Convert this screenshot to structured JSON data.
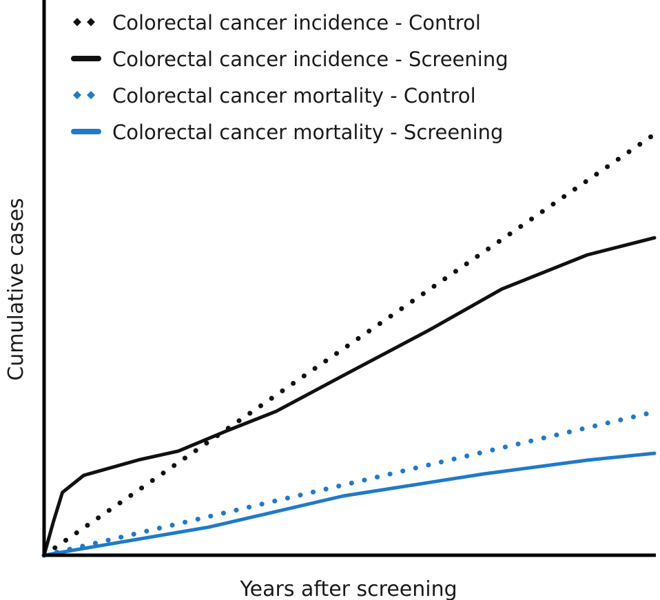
{
  "chart_data": {
    "type": "line",
    "title": "",
    "xlabel": "Years after screening",
    "ylabel": "Cumulative cases",
    "xlim": [
      0,
      10
    ],
    "ylim": [
      0,
      100
    ],
    "grid": false,
    "ticks_shown": false,
    "legend_placement": "top-left",
    "series": [
      {
        "name": "Colorectal cancer incidence - Control",
        "color": "#111111",
        "style": "dotted",
        "x": [
          0,
          10
        ],
        "y": [
          0,
          76.4
        ]
      },
      {
        "name": "Colorectal cancer incidence - Screening",
        "color": "#111111",
        "style": "solid",
        "x": [
          0,
          0.15,
          0.3,
          0.65,
          1.55,
          2.2,
          3.0,
          3.8,
          4.9,
          6.3,
          7.5,
          8.9,
          10
        ],
        "y": [
          0,
          6,
          11.4,
          14.5,
          17.3,
          18.9,
          22.6,
          26.1,
          32.6,
          40.8,
          48.3,
          54.5,
          57.6
        ]
      },
      {
        "name": "Colorectal cancer mortality - Control",
        "color": "#1f7ac8",
        "style": "dotted",
        "x": [
          0,
          10
        ],
        "y": [
          0,
          26
        ]
      },
      {
        "name": "Colorectal cancer mortality - Screening",
        "color": "#1f7ac8",
        "style": "solid",
        "x": [
          0,
          2.7,
          4.9,
          7.2,
          8.9,
          10
        ],
        "y": [
          0,
          5.1,
          10.75,
          14.75,
          17.25,
          18.5
        ]
      }
    ]
  }
}
